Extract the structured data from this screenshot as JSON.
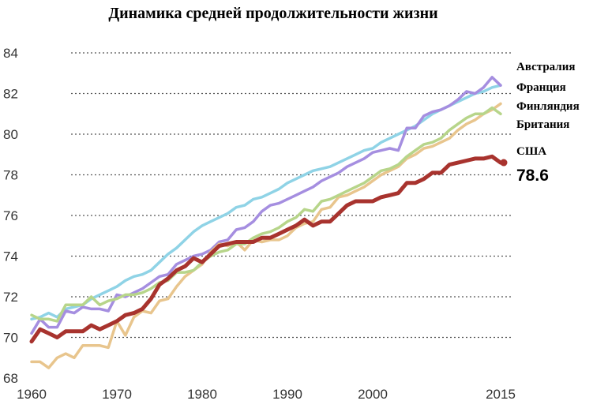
{
  "chart_data": {
    "type": "line",
    "title": "Динамика средней продолжительности жизни",
    "xlabel": "",
    "ylabel": "",
    "xlim": [
      1960,
      2015
    ],
    "ylim": [
      68,
      84
    ],
    "x_ticks": [
      1960,
      1970,
      1980,
      1990,
      2000,
      2015
    ],
    "y_ticks": [
      68,
      70,
      72,
      74,
      76,
      78,
      80,
      82,
      84
    ],
    "grid": true,
    "legend_position": "right, at line ends",
    "end_value_label": "78.6",
    "years": [
      1960,
      1961,
      1962,
      1963,
      1964,
      1965,
      1966,
      1967,
      1968,
      1969,
      1970,
      1971,
      1972,
      1973,
      1974,
      1975,
      1976,
      1977,
      1978,
      1979,
      1980,
      1981,
      1982,
      1983,
      1984,
      1985,
      1986,
      1987,
      1988,
      1989,
      1990,
      1991,
      1992,
      1993,
      1994,
      1995,
      1996,
      1997,
      1998,
      1999,
      2000,
      2001,
      2002,
      2003,
      2004,
      2005,
      2006,
      2007,
      2008,
      2009,
      2010,
      2011,
      2012,
      2013,
      2014,
      2015
    ],
    "series": [
      {
        "name": "Австралия",
        "color": "#8fd3e6",
        "values": [
          70.9,
          71.0,
          71.2,
          71.0,
          71.4,
          71.5,
          71.6,
          71.9,
          72.1,
          72.3,
          72.5,
          72.8,
          73.0,
          73.1,
          73.3,
          73.7,
          74.1,
          74.4,
          74.8,
          75.2,
          75.5,
          75.7,
          75.9,
          76.1,
          76.4,
          76.5,
          76.8,
          76.9,
          77.1,
          77.3,
          77.6,
          77.8,
          78.0,
          78.2,
          78.3,
          78.4,
          78.6,
          78.8,
          79.0,
          79.2,
          79.3,
          79.6,
          79.8,
          80.0,
          80.2,
          80.4,
          80.7,
          81.0,
          81.2,
          81.4,
          81.6,
          81.8,
          82.0,
          82.1,
          82.3,
          82.4
        ]
      },
      {
        "name": "Франция",
        "color": "#a58ee0",
        "values": [
          70.2,
          70.9,
          70.5,
          70.5,
          71.3,
          71.2,
          71.5,
          71.4,
          71.4,
          71.3,
          72.1,
          72.0,
          72.2,
          72.4,
          72.7,
          73.0,
          73.1,
          73.6,
          73.8,
          74.0,
          74.1,
          74.3,
          74.7,
          74.8,
          75.3,
          75.4,
          75.7,
          76.2,
          76.5,
          76.6,
          76.8,
          77.0,
          77.2,
          77.4,
          77.7,
          77.9,
          78.1,
          78.4,
          78.6,
          78.8,
          79.1,
          79.2,
          79.3,
          79.2,
          80.3,
          80.3,
          80.9,
          81.1,
          81.2,
          81.4,
          81.7,
          82.1,
          82.0,
          82.3,
          82.8,
          82.4
        ]
      },
      {
        "name": "Финляндия",
        "color": "#e8c58d",
        "values": [
          68.8,
          68.8,
          68.5,
          69.0,
          69.2,
          69.0,
          69.6,
          69.6,
          69.6,
          69.5,
          70.8,
          70.1,
          71.0,
          71.3,
          71.2,
          71.8,
          71.9,
          72.5,
          73.0,
          73.3,
          73.6,
          74.2,
          74.6,
          74.5,
          74.7,
          74.3,
          74.8,
          74.7,
          74.8,
          74.8,
          75.0,
          75.4,
          75.6,
          75.7,
          76.3,
          76.4,
          76.9,
          77.0,
          77.2,
          77.4,
          77.7,
          78.0,
          78.2,
          78.4,
          78.8,
          79.0,
          79.3,
          79.4,
          79.6,
          79.8,
          80.2,
          80.5,
          80.7,
          81.0,
          81.2,
          81.5
        ]
      },
      {
        "name": "Британия",
        "color": "#b7d58a",
        "values": [
          71.1,
          70.9,
          70.9,
          70.8,
          71.6,
          71.6,
          71.6,
          72.0,
          71.6,
          71.8,
          71.9,
          72.1,
          72.1,
          72.2,
          72.4,
          72.7,
          72.8,
          73.2,
          73.2,
          73.3,
          73.7,
          74.0,
          74.2,
          74.3,
          74.6,
          74.6,
          74.9,
          75.1,
          75.2,
          75.4,
          75.7,
          75.9,
          76.3,
          76.2,
          76.7,
          76.8,
          77.0,
          77.2,
          77.4,
          77.6,
          77.9,
          78.2,
          78.3,
          78.5,
          78.9,
          79.2,
          79.5,
          79.6,
          79.8,
          80.2,
          80.5,
          80.8,
          81.0,
          81.0,
          81.3,
          81.0
        ]
      },
      {
        "name": "США",
        "color": "#a8332e",
        "values": [
          69.8,
          70.4,
          70.2,
          70.0,
          70.3,
          70.3,
          70.3,
          70.6,
          70.4,
          70.6,
          70.8,
          71.1,
          71.2,
          71.4,
          71.9,
          72.6,
          72.9,
          73.3,
          73.5,
          73.9,
          73.7,
          74.1,
          74.5,
          74.6,
          74.7,
          74.7,
          74.7,
          74.9,
          74.9,
          75.1,
          75.3,
          75.5,
          75.8,
          75.5,
          75.7,
          75.7,
          76.1,
          76.5,
          76.7,
          76.7,
          76.7,
          76.9,
          77.0,
          77.1,
          77.6,
          77.6,
          77.8,
          78.1,
          78.1,
          78.5,
          78.6,
          78.7,
          78.8,
          78.8,
          78.9,
          78.6
        ]
      }
    ]
  }
}
